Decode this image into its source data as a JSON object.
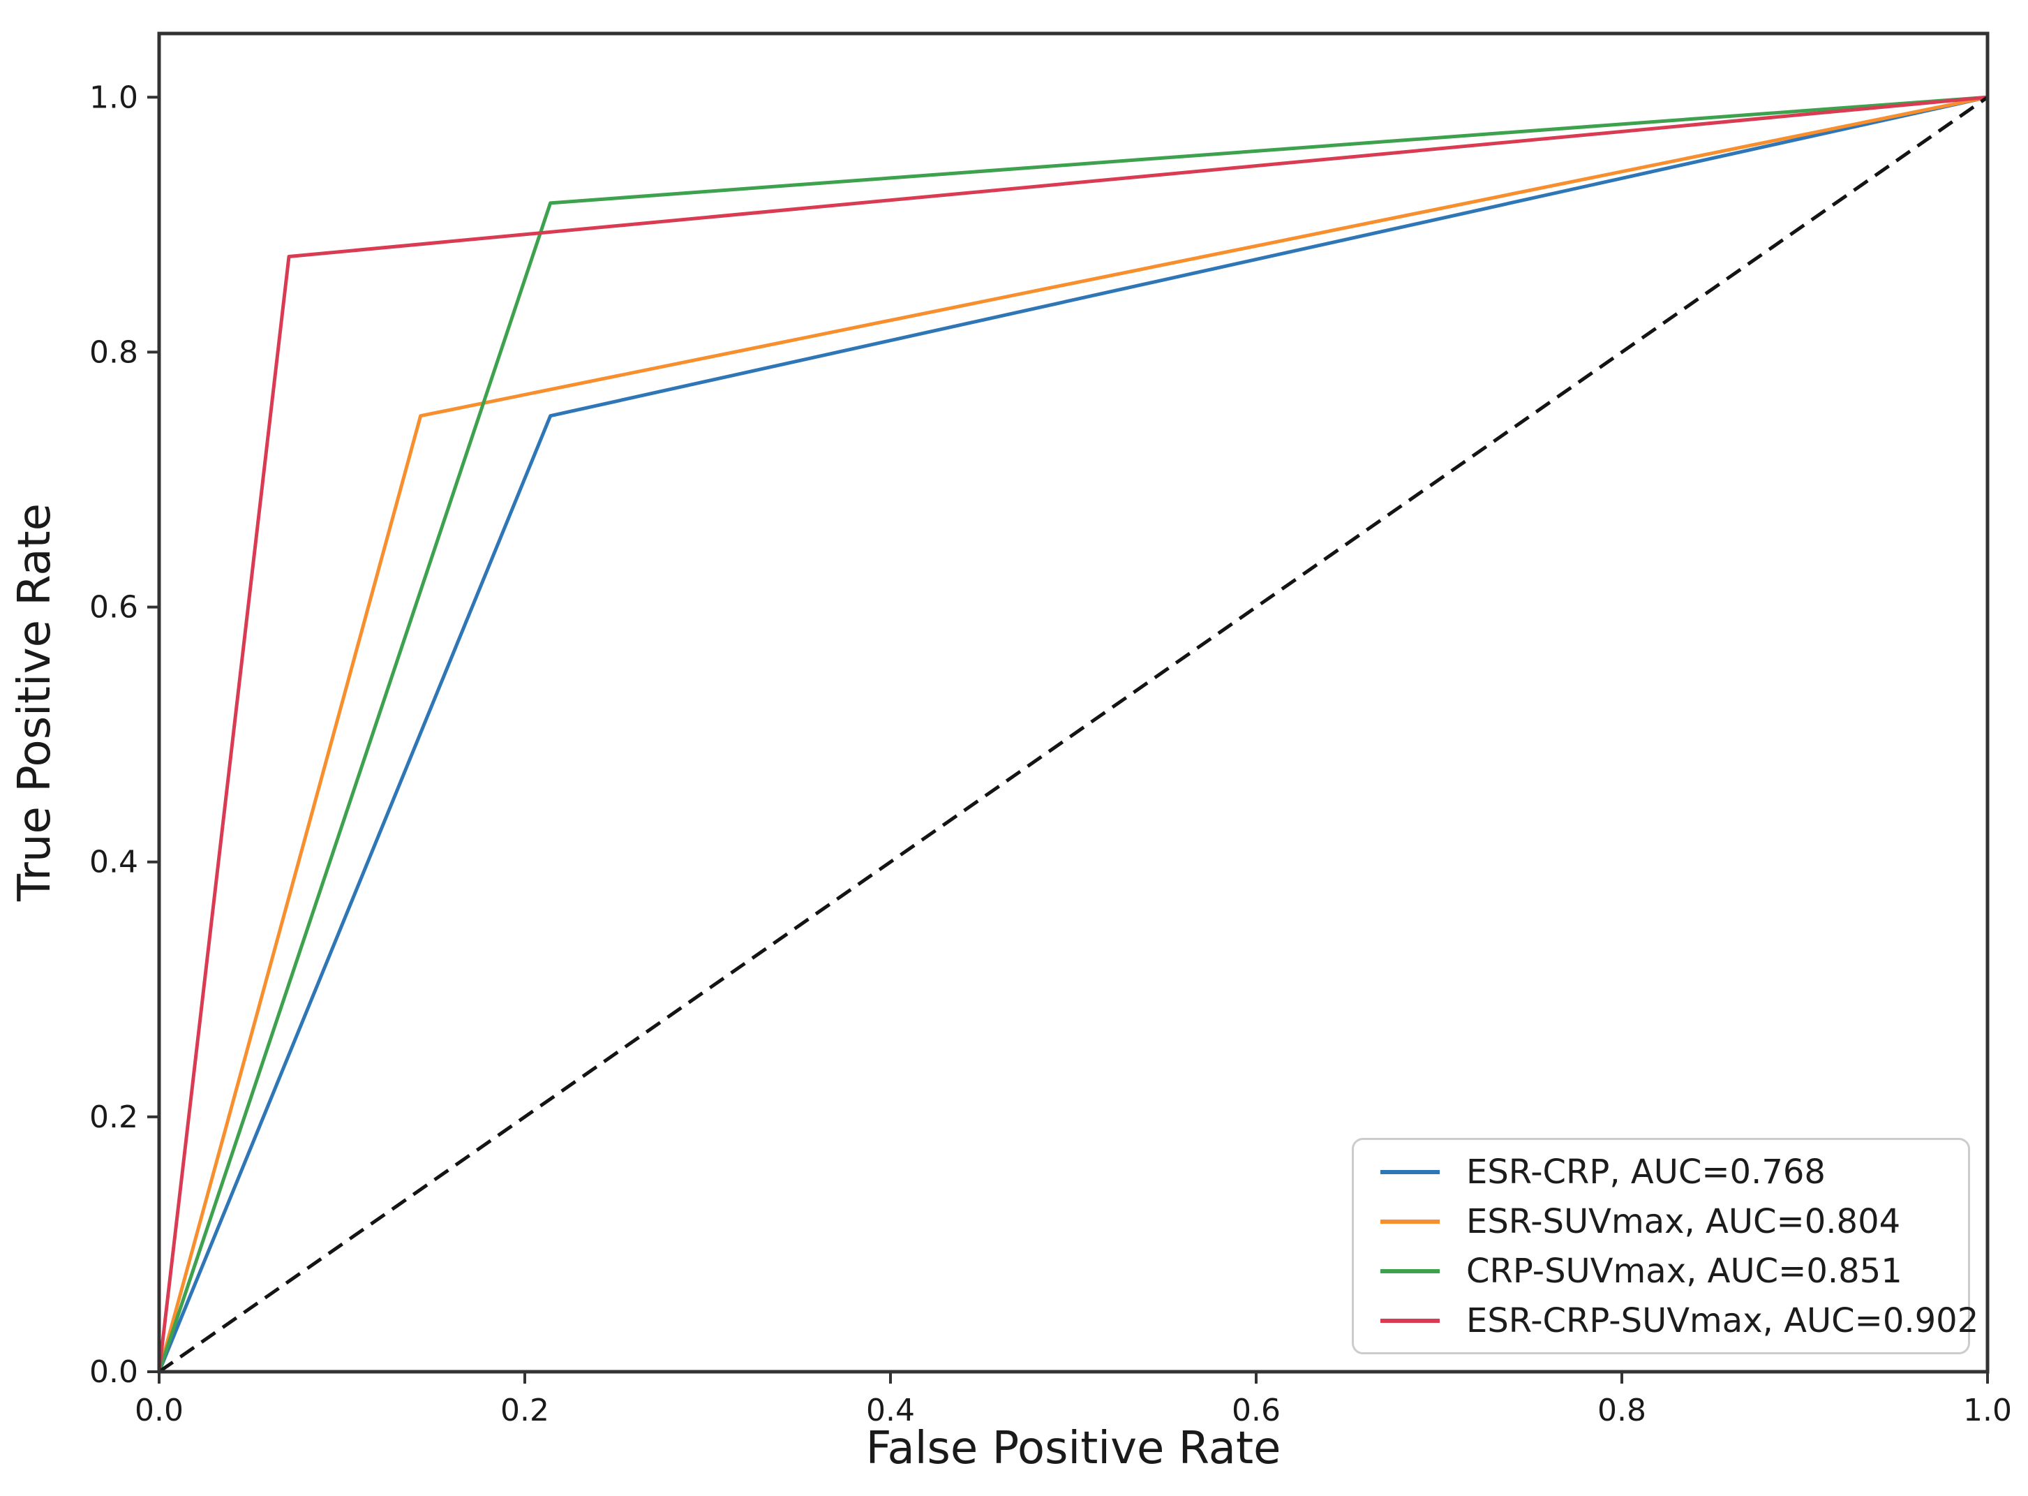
{
  "figure": {
    "background": "#ffffff",
    "text_color": "#1a1a1a",
    "frame_color": "#333333"
  },
  "chart_data": {
    "type": "line",
    "title": "",
    "xlabel": "False Positive Rate",
    "ylabel": "True Positive Rate",
    "xlim": [
      0.0,
      1.0
    ],
    "ylim": [
      0.0,
      1.05
    ],
    "grid": false,
    "legend_position": "lower right",
    "xticks": [
      {
        "v": 0.0,
        "label": "0.0"
      },
      {
        "v": 0.2,
        "label": "0.2"
      },
      {
        "v": 0.4,
        "label": "0.4"
      },
      {
        "v": 0.6,
        "label": "0.6"
      },
      {
        "v": 0.8,
        "label": "0.8"
      },
      {
        "v": 1.0,
        "label": "1.0"
      }
    ],
    "yticks": [
      {
        "v": 0.0,
        "label": "0.0"
      },
      {
        "v": 0.2,
        "label": "0.2"
      },
      {
        "v": 0.4,
        "label": "0.4"
      },
      {
        "v": 0.6,
        "label": "0.6"
      },
      {
        "v": 0.8,
        "label": "0.8"
      },
      {
        "v": 1.0,
        "label": "1.0"
      }
    ],
    "series": [
      {
        "name": "ESR-CRP",
        "label": "ESR-CRP, AUC=0.768",
        "auc": 0.768,
        "color": "#2e76b6",
        "x": [
          0.0,
          0.214,
          1.0
        ],
        "y": [
          0.0,
          0.75,
          1.0
        ]
      },
      {
        "name": "ESR-SUVmax",
        "label": "ESR-SUVmax, AUC=0.804",
        "auc": 0.804,
        "color": "#f78f2e",
        "x": [
          0.0,
          0.143,
          1.0
        ],
        "y": [
          0.0,
          0.75,
          1.0
        ]
      },
      {
        "name": "CRP-SUVmax",
        "label": "CRP-SUVmax, AUC=0.851",
        "auc": 0.851,
        "color": "#3da14d",
        "x": [
          0.0,
          0.214,
          1.0
        ],
        "y": [
          0.0,
          0.917,
          1.0
        ]
      },
      {
        "name": "ESR-CRP-SUVmax",
        "label": "ESR-CRP-SUVmax, AUC=0.902",
        "auc": 0.902,
        "color": "#d93b53",
        "x": [
          0.0,
          0.071,
          1.0
        ],
        "y": [
          0.0,
          0.875,
          1.0
        ]
      }
    ],
    "reference_line": {
      "name": "chance-diagonal",
      "style": "dashed",
      "color": "#141414",
      "x": [
        0.0,
        1.0
      ],
      "y": [
        0.0,
        1.0
      ]
    }
  }
}
